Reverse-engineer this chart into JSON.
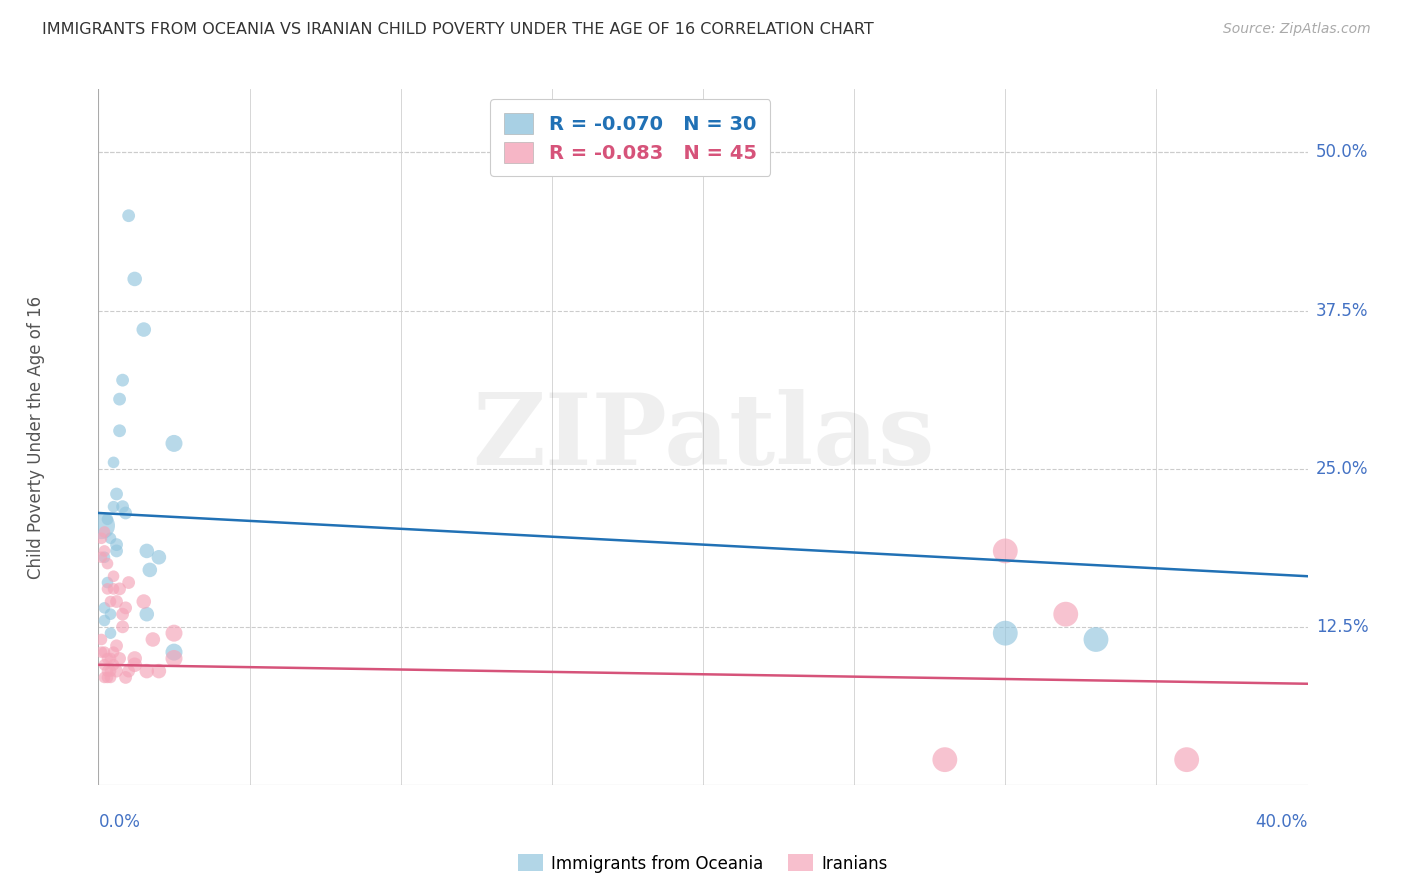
{
  "title": "IMMIGRANTS FROM OCEANIA VS IRANIAN CHILD POVERTY UNDER THE AGE OF 16 CORRELATION CHART",
  "source": "Source: ZipAtlas.com",
  "xlabel_bottom_left": "0.0%",
  "xlabel_bottom_right": "40.0%",
  "ylabel": "Child Poverty Under the Age of 16",
  "ytick_labels": [
    "50.0%",
    "37.5%",
    "25.0%",
    "12.5%"
  ],
  "ytick_values": [
    0.5,
    0.375,
    0.25,
    0.125
  ],
  "xlim": [
    0.0,
    0.4
  ],
  "ylim": [
    0.0,
    0.55
  ],
  "blue_label": "Immigrants from Oceania",
  "pink_label": "Iranians",
  "blue_R": "-0.070",
  "blue_N": "30",
  "pink_R": "-0.083",
  "pink_N": "45",
  "blue_color": "#92c5de",
  "pink_color": "#f4a4b8",
  "blue_line_color": "#2171b5",
  "pink_line_color": "#d6537a",
  "watermark": "ZIPatlas",
  "background_color": "#ffffff",
  "blue_points": [
    [
      0.001,
      0.205
    ],
    [
      0.002,
      0.18
    ],
    [
      0.002,
      0.14
    ],
    [
      0.002,
      0.13
    ],
    [
      0.003,
      0.21
    ],
    [
      0.003,
      0.16
    ],
    [
      0.004,
      0.195
    ],
    [
      0.004,
      0.135
    ],
    [
      0.004,
      0.12
    ],
    [
      0.005,
      0.255
    ],
    [
      0.005,
      0.22
    ],
    [
      0.006,
      0.23
    ],
    [
      0.006,
      0.19
    ],
    [
      0.006,
      0.185
    ],
    [
      0.007,
      0.305
    ],
    [
      0.007,
      0.28
    ],
    [
      0.008,
      0.32
    ],
    [
      0.008,
      0.22
    ],
    [
      0.009,
      0.215
    ],
    [
      0.01,
      0.45
    ],
    [
      0.012,
      0.4
    ],
    [
      0.015,
      0.36
    ],
    [
      0.016,
      0.185
    ],
    [
      0.016,
      0.135
    ],
    [
      0.017,
      0.17
    ],
    [
      0.02,
      0.18
    ],
    [
      0.025,
      0.27
    ],
    [
      0.025,
      0.105
    ],
    [
      0.3,
      0.12
    ],
    [
      0.33,
      0.115
    ]
  ],
  "pink_points": [
    [
      0.001,
      0.195
    ],
    [
      0.001,
      0.18
    ],
    [
      0.001,
      0.115
    ],
    [
      0.001,
      0.105
    ],
    [
      0.002,
      0.2
    ],
    [
      0.002,
      0.185
    ],
    [
      0.002,
      0.105
    ],
    [
      0.002,
      0.095
    ],
    [
      0.002,
      0.085
    ],
    [
      0.003,
      0.175
    ],
    [
      0.003,
      0.155
    ],
    [
      0.003,
      0.1
    ],
    [
      0.003,
      0.09
    ],
    [
      0.003,
      0.085
    ],
    [
      0.004,
      0.145
    ],
    [
      0.004,
      0.1
    ],
    [
      0.004,
      0.09
    ],
    [
      0.004,
      0.085
    ],
    [
      0.005,
      0.165
    ],
    [
      0.005,
      0.155
    ],
    [
      0.005,
      0.105
    ],
    [
      0.005,
      0.095
    ],
    [
      0.006,
      0.145
    ],
    [
      0.006,
      0.11
    ],
    [
      0.006,
      0.09
    ],
    [
      0.007,
      0.155
    ],
    [
      0.007,
      0.1
    ],
    [
      0.008,
      0.135
    ],
    [
      0.008,
      0.125
    ],
    [
      0.009,
      0.14
    ],
    [
      0.009,
      0.085
    ],
    [
      0.01,
      0.16
    ],
    [
      0.01,
      0.09
    ],
    [
      0.012,
      0.1
    ],
    [
      0.012,
      0.095
    ],
    [
      0.015,
      0.145
    ],
    [
      0.016,
      0.09
    ],
    [
      0.018,
      0.115
    ],
    [
      0.02,
      0.09
    ],
    [
      0.025,
      0.1
    ],
    [
      0.025,
      0.12
    ],
    [
      0.3,
      0.185
    ],
    [
      0.32,
      0.135
    ],
    [
      0.36,
      0.02
    ],
    [
      0.28,
      0.02
    ]
  ],
  "blue_regression": {
    "x_start": 0.0,
    "y_start": 0.215,
    "x_end": 0.4,
    "y_end": 0.165
  },
  "pink_regression": {
    "x_start": 0.0,
    "y_start": 0.095,
    "x_end": 0.4,
    "y_end": 0.08
  }
}
